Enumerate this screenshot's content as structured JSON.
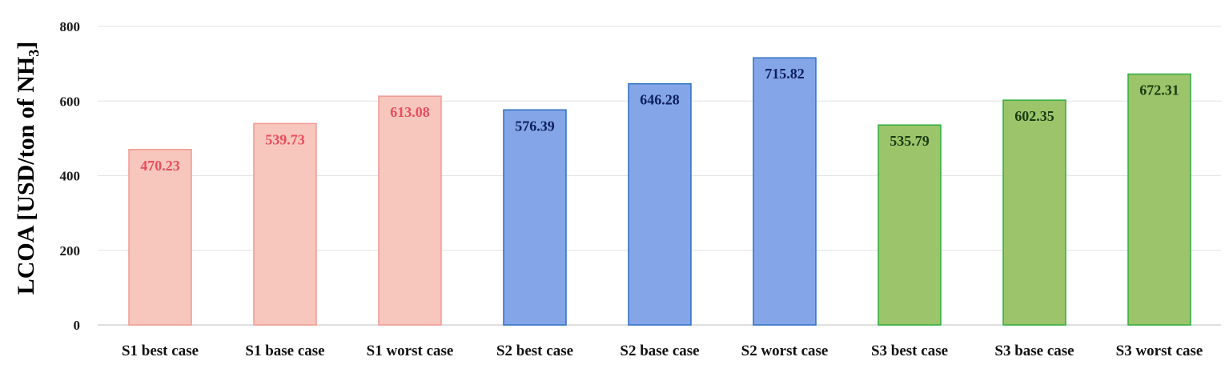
{
  "chart_data": {
    "type": "bar",
    "title": "",
    "xlabel": "",
    "ylabel": "LCOA [USD/ton of NH₃]",
    "ylim": [
      0,
      800
    ],
    "yticks": [
      0,
      200,
      400,
      600,
      800
    ],
    "grid": true,
    "categories": [
      "S1 best case",
      "S1 base case",
      "S1 worst case",
      "S2 best case",
      "S2 base case",
      "S2 worst case",
      "S3 best case",
      "S3 base case",
      "S3 worst case"
    ],
    "values": [
      470.23,
      539.73,
      613.08,
      576.39,
      646.28,
      715.82,
      535.79,
      602.35,
      672.31
    ],
    "value_labels": [
      "470.23",
      "539.73",
      "613.08",
      "576.39",
      "646.28",
      "715.82",
      "535.79",
      "602.35",
      "672.31"
    ],
    "groups": [
      {
        "name": "S1",
        "indices": [
          0,
          1,
          2
        ],
        "fill": "#f7c6bd",
        "stroke": "#f09a94",
        "label_color": "#ea4d5c"
      },
      {
        "name": "S2",
        "indices": [
          3,
          4,
          5
        ],
        "fill": "#84a6e8",
        "stroke": "#2f6fc2",
        "label_color": "#0d1f5c"
      },
      {
        "name": "S3",
        "indices": [
          6,
          7,
          8
        ],
        "fill": "#9cc46a",
        "stroke": "#2fae3f",
        "label_color": "#173d12"
      }
    ],
    "colors": {
      "grid": "#e3e3e3",
      "axis": "#bfbfbf"
    }
  }
}
